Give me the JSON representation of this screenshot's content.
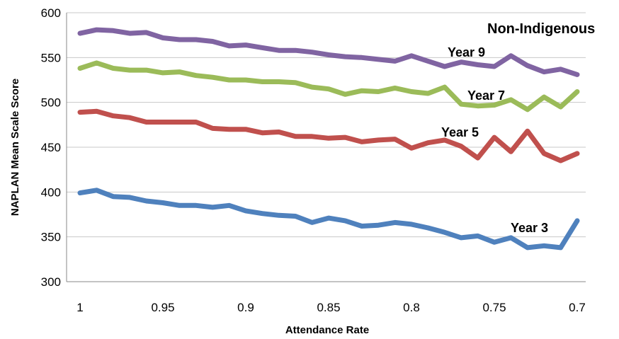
{
  "chart_data": {
    "type": "line",
    "title": "Non-Indigenous",
    "xlabel": "Attendance Rate",
    "ylabel": "NAPLAN Mean Scale Score",
    "ylim": [
      300,
      600
    ],
    "xlim": [
      1.0,
      0.7
    ],
    "x_reversed": true,
    "grid": "horizontal",
    "yticks": [
      "300",
      "350",
      "400",
      "450",
      "500",
      "550",
      "600"
    ],
    "xticks": [
      "1",
      "0.95",
      "0.9",
      "0.85",
      "0.8",
      "0.75",
      "0.7"
    ],
    "x": [
      1.0,
      0.99,
      0.98,
      0.97,
      0.96,
      0.95,
      0.94,
      0.93,
      0.92,
      0.91,
      0.9,
      0.89,
      0.88,
      0.87,
      0.86,
      0.85,
      0.84,
      0.83,
      0.82,
      0.81,
      0.8,
      0.79,
      0.78,
      0.77,
      0.76,
      0.75,
      0.74,
      0.73,
      0.72,
      0.71,
      0.7
    ],
    "series": [
      {
        "name": "Year 9",
        "color": "#8064a2",
        "values": [
          577,
          581,
          580,
          577,
          578,
          572,
          570,
          570,
          568,
          563,
          564,
          561,
          558,
          558,
          556,
          553,
          551,
          550,
          548,
          546,
          552,
          546,
          540,
          545,
          542,
          540,
          552,
          541,
          534,
          537,
          531
        ]
      },
      {
        "name": "Year 7",
        "color": "#9bbb59",
        "values": [
          538,
          544,
          538,
          536,
          536,
          533,
          534,
          530,
          528,
          525,
          525,
          523,
          523,
          522,
          517,
          515,
          509,
          513,
          512,
          516,
          512,
          510,
          517,
          498,
          496,
          497,
          503,
          492,
          506,
          495,
          512
        ]
      },
      {
        "name": "Year 5",
        "color": "#c0504d",
        "values": [
          489,
          490,
          485,
          483,
          478,
          478,
          478,
          478,
          471,
          470,
          470,
          466,
          467,
          462,
          462,
          460,
          461,
          456,
          458,
          459,
          449,
          455,
          458,
          451,
          438,
          461,
          445,
          468,
          443,
          435,
          443
        ]
      },
      {
        "name": "Year 3",
        "color": "#4f81bd",
        "values": [
          399,
          402,
          395,
          394,
          390,
          388,
          385,
          385,
          383,
          385,
          379,
          376,
          374,
          373,
          366,
          371,
          368,
          362,
          363,
          366,
          364,
          360,
          355,
          349,
          351,
          344,
          349,
          338,
          340,
          338,
          368
        ]
      }
    ],
    "series_labels": [
      "Year 9",
      "Year 7",
      "Year 5",
      "Year 3"
    ]
  }
}
